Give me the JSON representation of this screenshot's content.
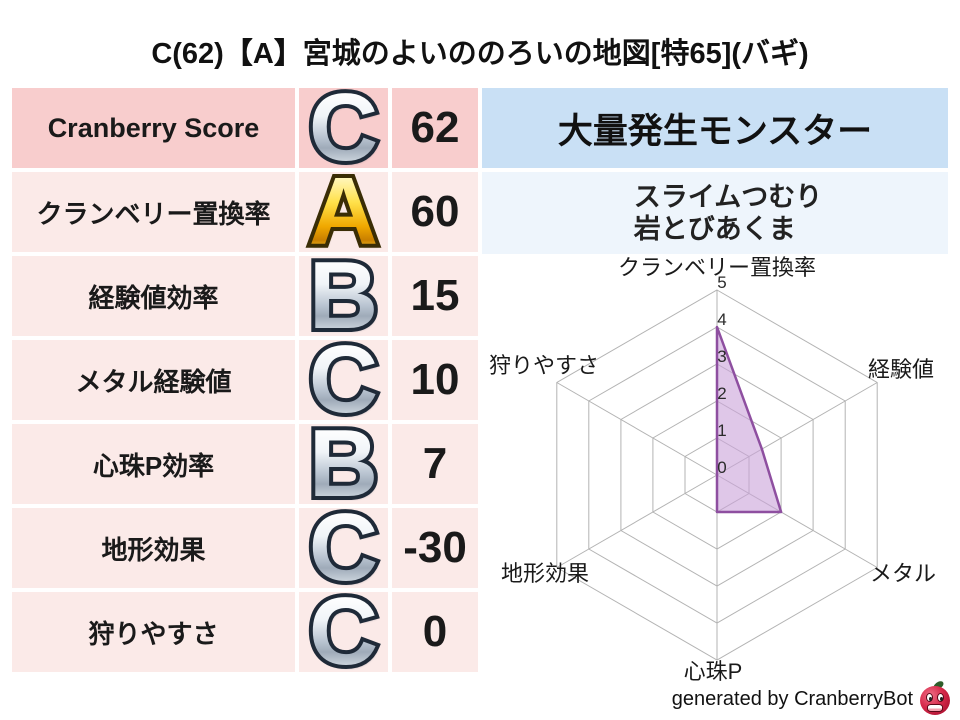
{
  "title": "C(62)【A】宮城のよいののろいの地図[特65](バギ)",
  "score_table": {
    "rows": [
      {
        "label": "Cranberry Score",
        "grade": "C",
        "value": "62"
      },
      {
        "label": "クランベリー置換率",
        "grade": "A",
        "value": "60"
      },
      {
        "label": "経験値効率",
        "grade": "B",
        "value": "15"
      },
      {
        "label": "メタル経験値",
        "grade": "C",
        "value": "10"
      },
      {
        "label": "心珠P効率",
        "grade": "B",
        "value": "7"
      },
      {
        "label": "地形効果",
        "grade": "C",
        "value": "-30"
      },
      {
        "label": "狩りやすさ",
        "grade": "C",
        "value": "0"
      }
    ]
  },
  "monster_panel": {
    "header": "大量発生モンスター",
    "monsters": [
      "スライムつむり",
      "岩とびあくま"
    ]
  },
  "chart_data": {
    "type": "radar",
    "categories": [
      "クランベリー置換率",
      "経験値",
      "メタル",
      "心珠P",
      "地形効果",
      "狩りやすさ"
    ],
    "values": [
      4,
      1.4,
      2,
      1,
      0,
      0
    ],
    "ticks": [
      0,
      1,
      2,
      3,
      4,
      5
    ],
    "rmax": 5,
    "grid_on": true,
    "legend": "none",
    "fill_color": "#caa2d8",
    "fill_opacity": 0.6,
    "line_color": "#8e4fa0",
    "grid_color": "#b3b3b3",
    "tick_color": "#2b2b2b",
    "label_color": "#1a1a1a"
  },
  "footer": {
    "credit": "generated by CranberryBot",
    "icon": "cranberry-bot-icon"
  },
  "colors": {
    "row_header_pink": "#f8cdcd",
    "row_pink": "#fbeae8",
    "monster_header_blue": "#c9e0f5",
    "monster_list_blue": "#eef5fc",
    "grade_gold": "#f0a800",
    "grade_silver": "#b9c4d1"
  }
}
